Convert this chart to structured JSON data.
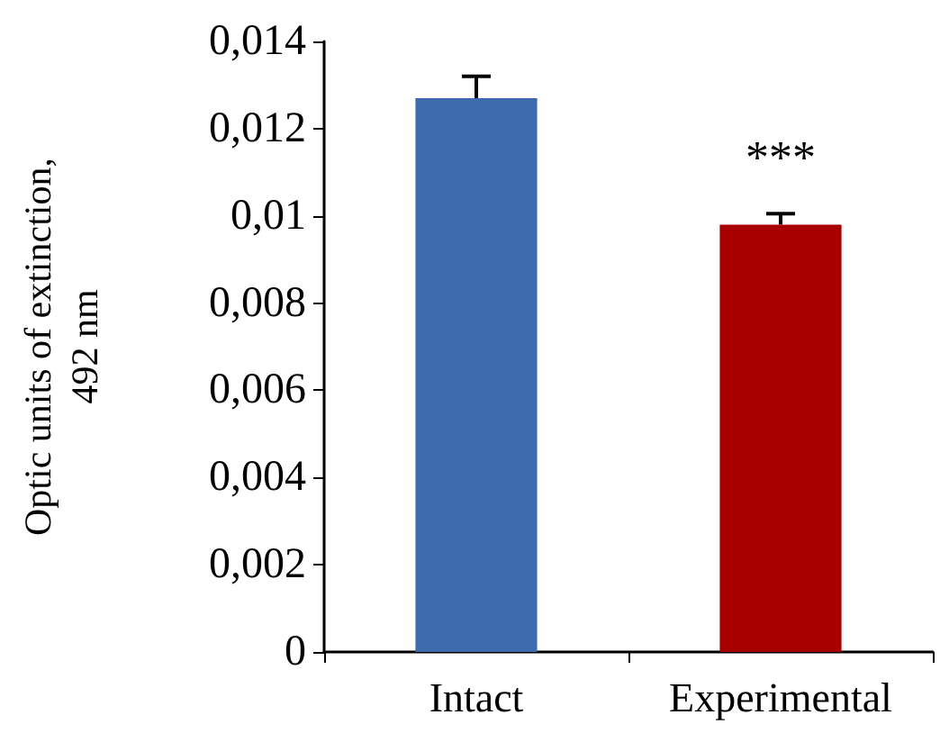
{
  "chart_data": {
    "type": "bar",
    "ylabel": "Optic units of extinction,\n492 nm",
    "categories": [
      "Intact",
      "Experimental"
    ],
    "values": [
      0.0127,
      0.0098
    ],
    "colors": [
      "#3c6cad",
      "#a80000"
    ],
    "errors": [
      [
        0.0127,
        0.0132
      ],
      [
        0.0098,
        0.01005
      ]
    ],
    "ylim": [
      0,
      0.014
    ],
    "yticks": [
      {
        "value": 0,
        "label": "0"
      },
      {
        "value": 0.002,
        "label": "0,002"
      },
      {
        "value": 0.004,
        "label": "0,004"
      },
      {
        "value": 0.006,
        "label": "0,006"
      },
      {
        "value": 0.008,
        "label": "0,008"
      },
      {
        "value": 0.01,
        "label": "0,01"
      },
      {
        "value": 0.012,
        "label": "0,012"
      },
      {
        "value": 0.014,
        "label": "0,014"
      }
    ],
    "annotations": [
      "***"
    ],
    "grid": false
  }
}
